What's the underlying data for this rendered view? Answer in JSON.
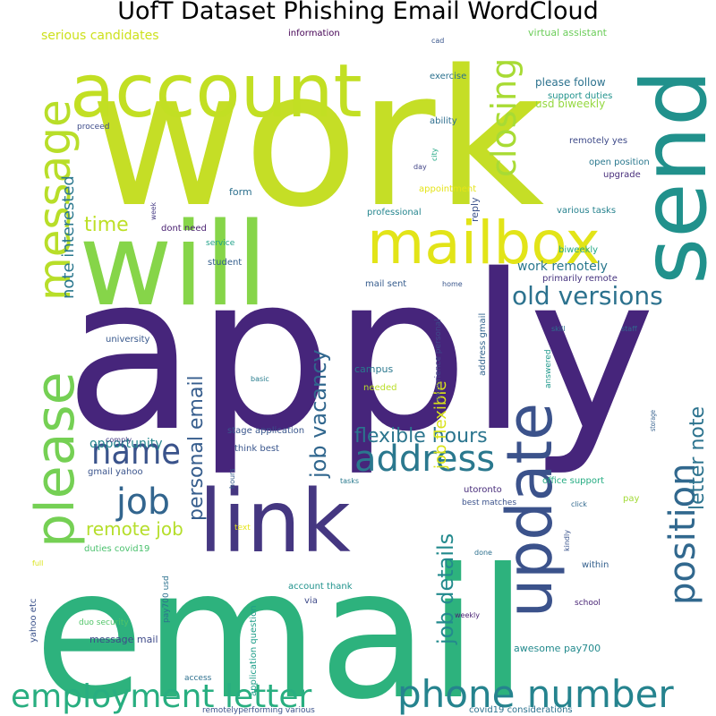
{
  "title": "UofT Dataset Phishing Email WordCloud",
  "words": [
    {
      "text": "work",
      "color": "#c5de26"
    },
    {
      "text": "apply",
      "color": "#46257b"
    },
    {
      "text": "email",
      "color": "#2db27d"
    },
    {
      "text": "will",
      "color": "#86d549"
    },
    {
      "text": "send",
      "color": "#21918c"
    },
    {
      "text": "account",
      "color": "#c2df23"
    },
    {
      "text": "link",
      "color": "#453781"
    },
    {
      "text": "mailbox",
      "color": "#e2e418"
    },
    {
      "text": "update",
      "color": "#3b528b"
    },
    {
      "text": "please",
      "color": "#75d054"
    },
    {
      "text": "message",
      "color": "#b8de29"
    },
    {
      "text": "closing",
      "color": "#a8db34"
    },
    {
      "text": "position",
      "color": "#31688e"
    },
    {
      "text": "phone number",
      "color": "#25838e"
    },
    {
      "text": "employment letter",
      "color": "#28ae80"
    },
    {
      "text": "address",
      "color": "#2a788e"
    },
    {
      "text": "job",
      "color": "#32658e"
    },
    {
      "text": "name",
      "color": "#3a538b"
    },
    {
      "text": "old versions",
      "color": "#2c728e"
    },
    {
      "text": "flexible hours",
      "color": "#2b758e"
    },
    {
      "text": "letter note",
      "color": "#2c738e"
    },
    {
      "text": "personal email",
      "color": "#365d8d"
    },
    {
      "text": "job details",
      "color": "#238a8d"
    },
    {
      "text": "job vacancy",
      "color": "#31678e"
    },
    {
      "text": "remote job",
      "color": "#b5de2b"
    },
    {
      "text": "note interested",
      "color": "#2a778e"
    },
    {
      "text": "time",
      "color": "#bddf26"
    },
    {
      "text": "job flexible",
      "color": "#d8e219"
    },
    {
      "text": "please follow",
      "color": "#2c728e"
    },
    {
      "text": "work remotely",
      "color": "#2a788e"
    },
    {
      "text": "opportunity",
      "color": "#24868e"
    },
    {
      "text": "usd biweekly",
      "color": "#95d840"
    },
    {
      "text": "serious candidates",
      "color": "#cde11d"
    },
    {
      "text": "information",
      "color": "#440154"
    },
    {
      "text": "virtual assistant",
      "color": "#6ccd5a"
    },
    {
      "text": "support duties",
      "color": "#20928c"
    },
    {
      "text": "remotely yes",
      "color": "#3e4a89"
    },
    {
      "text": "open position",
      "color": "#2a788e"
    },
    {
      "text": "upgrade",
      "color": "#472d7b"
    },
    {
      "text": "exercise",
      "color": "#2c718e"
    },
    {
      "text": "ability",
      "color": "#2e6e8e"
    },
    {
      "text": "proceed",
      "color": "#3e4c8a"
    },
    {
      "text": "city",
      "color": "#22a884"
    },
    {
      "text": "day",
      "color": "#414487"
    },
    {
      "text": "appointment",
      "color": "#e5e419"
    },
    {
      "text": "professional",
      "color": "#25858e"
    },
    {
      "text": "various tasks",
      "color": "#26828e"
    },
    {
      "text": "form",
      "color": "#2d708e"
    },
    {
      "text": "reply",
      "color": "#3b528b"
    },
    {
      "text": "dont need",
      "color": "#481f70"
    },
    {
      "text": "week",
      "color": "#443983"
    },
    {
      "text": "service",
      "color": "#1fa188"
    },
    {
      "text": "biweekly",
      "color": "#22a884"
    },
    {
      "text": "home",
      "color": "#39568c"
    },
    {
      "text": "student",
      "color": "#355f8d"
    },
    {
      "text": "primarily remote",
      "color": "#46337f"
    },
    {
      "text": "mail sent",
      "color": "#365c8d"
    },
    {
      "text": "experience personal",
      "color": "#3e4a89"
    },
    {
      "text": "address gmail",
      "color": "#32648e"
    },
    {
      "text": "university",
      "color": "#38588c"
    },
    {
      "text": "skill",
      "color": "#2c728e"
    },
    {
      "text": "staff",
      "color": "#31678e"
    },
    {
      "text": "answered",
      "color": "#1f988b"
    },
    {
      "text": "campus",
      "color": "#2a788e"
    },
    {
      "text": "needed",
      "color": "#bade28"
    },
    {
      "text": "basic",
      "color": "#287d8e"
    },
    {
      "text": "stage application",
      "color": "#39568c"
    },
    {
      "text": "think best",
      "color": "#39558c"
    },
    {
      "text": "comply",
      "color": "#443b84"
    },
    {
      "text": "gmail yahoo",
      "color": "#3a548c"
    },
    {
      "text": "storage",
      "color": "#34608d"
    },
    {
      "text": "office support",
      "color": "#25ac82"
    },
    {
      "text": "pay",
      "color": "#a2da37"
    },
    {
      "text": "click",
      "color": "#31688e"
    },
    {
      "text": "utoronto",
      "color": "#472c7a"
    },
    {
      "text": "best matches",
      "color": "#3b528b"
    },
    {
      "text": "tasks",
      "color": "#297a8e"
    },
    {
      "text": "hours",
      "color": "#365d8d"
    },
    {
      "text": "text",
      "color": "#e5e419"
    },
    {
      "text": "kindly",
      "color": "#3a548c"
    },
    {
      "text": "duties covid19",
      "color": "#4ac16d"
    },
    {
      "text": "within",
      "color": "#34608d"
    },
    {
      "text": "full",
      "color": "#dae319"
    },
    {
      "text": "done",
      "color": "#2d708e"
    },
    {
      "text": "yahoo etc",
      "color": "#3b528b"
    },
    {
      "text": "pay700 usd",
      "color": "#2c718e"
    },
    {
      "text": "account thank",
      "color": "#20928c"
    },
    {
      "text": "via",
      "color": "#3e4a89"
    },
    {
      "text": "school",
      "color": "#482475"
    },
    {
      "text": "duo security",
      "color": "#52c569"
    },
    {
      "text": "application question",
      "color": "#1f9e89"
    },
    {
      "text": "weekly",
      "color": "#482173"
    },
    {
      "text": "message mail",
      "color": "#3e4a89"
    },
    {
      "text": "awesome pay700",
      "color": "#238a8d"
    },
    {
      "text": "access",
      "color": "#2d708e"
    },
    {
      "text": "remotelyperforming various",
      "color": "#3b528b"
    },
    {
      "text": "covid19 considerations",
      "color": "#2c728e"
    },
    {
      "text": "cad",
      "color": "#39568c"
    }
  ]
}
